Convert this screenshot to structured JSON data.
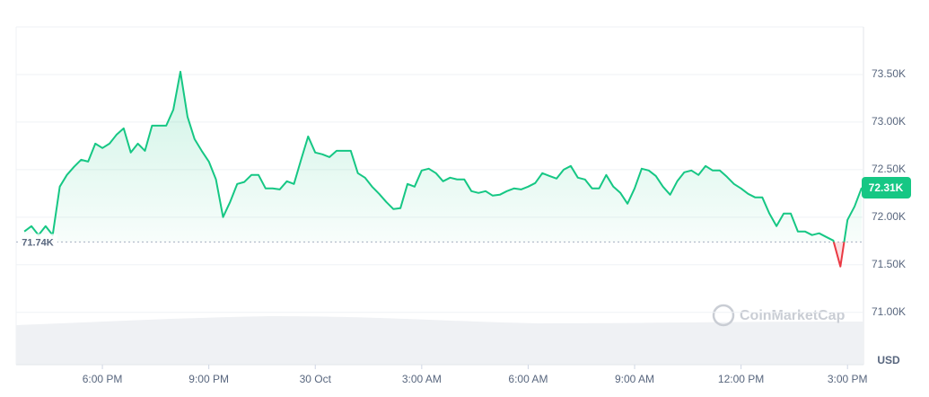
{
  "chart_data": {
    "type": "line",
    "x": [
      -8.2,
      -8.0,
      -7.8,
      -7.6,
      -7.4,
      -7.2,
      -7.0,
      -6.8,
      -6.6,
      -6.4,
      -6.2,
      -6.0,
      -5.8,
      -5.6,
      -5.4,
      -5.2,
      -5.0,
      -4.8,
      -4.6,
      -4.4,
      -4.2,
      -4.0,
      -3.8,
      -3.6,
      -3.4,
      -3.2,
      -3.0,
      -2.8,
      -2.6,
      -2.4,
      -2.2,
      -2.0,
      -1.8,
      -1.6,
      -1.4,
      -1.2,
      -1.0,
      -0.8,
      -0.6,
      -0.4,
      -0.2,
      0.0,
      0.2,
      0.4,
      0.6,
      0.8,
      1.0,
      1.2,
      1.4,
      1.6,
      1.8,
      2.0,
      2.2,
      2.4,
      2.6,
      2.8,
      3.0,
      3.2,
      3.4,
      3.6,
      3.8,
      4.0,
      4.2,
      4.4,
      4.6,
      4.8,
      5.0,
      5.2,
      5.4,
      5.6,
      5.8,
      6.0,
      6.2,
      6.4,
      6.6,
      6.8,
      7.0,
      7.2,
      7.4,
      7.6,
      7.8,
      8.0,
      8.2,
      8.4,
      8.6,
      8.8,
      9.0,
      9.2,
      9.4,
      9.6,
      9.8,
      10.0,
      10.2,
      10.4,
      10.6,
      10.8,
      11.0,
      11.2,
      11.4,
      11.6,
      11.8,
      12.0,
      12.2,
      12.4,
      12.6,
      12.8,
      13.0,
      13.2,
      13.4,
      13.6,
      13.8,
      14.0,
      14.2,
      14.4,
      14.6,
      14.8,
      15.0,
      15.2,
      15.4
    ],
    "series": [
      {
        "color": "#16c784",
        "values": [
          71850,
          71906,
          71812,
          71906,
          71812,
          72321,
          72444,
          72529,
          72604,
          72585,
          72774,
          72727,
          72774,
          72868,
          72934,
          72680,
          72774,
          72698,
          72962,
          72962,
          72962,
          73130,
          73530,
          73057,
          72821,
          72698,
          72585,
          72397,
          72001,
          72161,
          72350,
          72370,
          72444,
          72444,
          72302,
          72302,
          72292,
          72378,
          72350,
          72604,
          72849,
          72680,
          72661,
          72632,
          72698,
          72698,
          72698,
          72463,
          72416,
          72321,
          72246,
          72161,
          72086,
          72095,
          72350,
          72321,
          72491,
          72510,
          72463,
          72378,
          72416,
          72397,
          72397,
          72274,
          72255,
          72274,
          72227,
          72236,
          72274,
          72302,
          72292,
          72321,
          72359,
          72463,
          72434,
          72406,
          72500,
          72538,
          72416,
          72397,
          72302,
          72302,
          72444,
          72321,
          72255,
          72142,
          72302,
          72510,
          72491,
          72434,
          72321,
          72236,
          72378,
          72472,
          72491,
          72444,
          72538,
          72491,
          72491,
          72425,
          72350,
          72302,
          72246,
          72208,
          72208,
          72038,
          71906,
          72038,
          72038,
          71850,
          71850,
          71812,
          71831,
          71793,
          71755,
          71482,
          71972,
          72114,
          72310
        ]
      }
    ],
    "down_color": "#ea3943",
    "baseline": {
      "value": 71740,
      "label": "71.74K"
    },
    "current": {
      "value": 72310,
      "label": "72.31K"
    },
    "xlim": [
      -8.43,
      15.45
    ],
    "xticks": [
      {
        "value": -6,
        "label": "6:00 PM"
      },
      {
        "value": -3,
        "label": "9:00 PM"
      },
      {
        "value": 0,
        "label": "30 Oct"
      },
      {
        "value": 3,
        "label": "3:00 AM"
      },
      {
        "value": 6,
        "label": "6:00 AM"
      },
      {
        "value": 9,
        "label": "9:00 AM"
      },
      {
        "value": 12,
        "label": "12:00 PM"
      },
      {
        "value": 15,
        "label": "3:00 PM"
      }
    ],
    "ylim": [
      70450,
      74000
    ],
    "yticks": [
      {
        "value": 71000,
        "label": "71.00K"
      },
      {
        "value": 71500,
        "label": "71.50K"
      },
      {
        "value": 72000,
        "label": "72.00K"
      },
      {
        "value": 72500,
        "label": "72.50K"
      },
      {
        "value": 73000,
        "label": "73.00K"
      },
      {
        "value": 73500,
        "label": "73.50K"
      }
    ],
    "grid": true,
    "unit": "USD",
    "watermark": "CoinMarketCap"
  }
}
